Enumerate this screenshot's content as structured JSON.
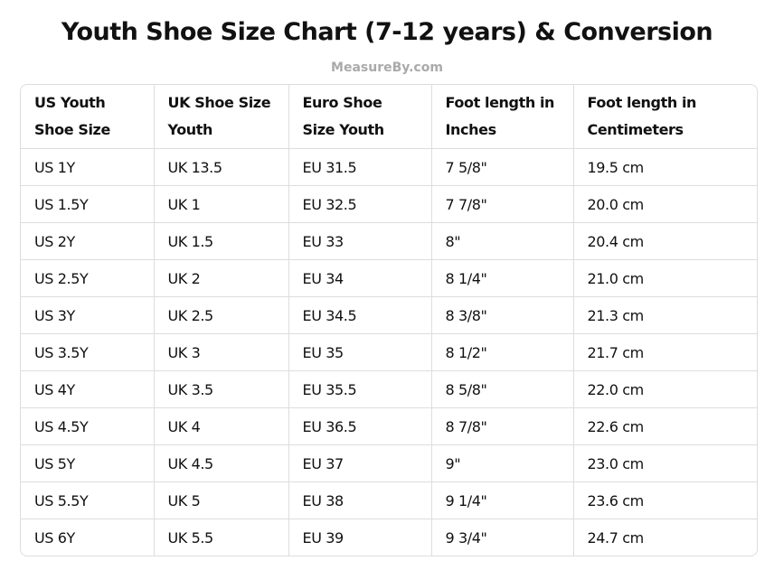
{
  "header": {
    "title": "Youth Shoe Size Chart (7-12 years) & Conversion",
    "source": "MeasureBy.com"
  },
  "table": {
    "columns": [
      "US Youth Shoe Size",
      "UK Shoe Size Youth",
      "Euro Shoe Size Youth",
      "Foot length in Inches",
      "Foot length in Centimeters"
    ],
    "rows": [
      [
        "US 1Y",
        "UK 13.5",
        "EU 31.5",
        "7 5/8\"",
        "19.5 cm"
      ],
      [
        "US 1.5Y",
        "UK 1",
        "EU 32.5",
        "7 7/8\"",
        "20.0 cm"
      ],
      [
        "US 2Y",
        "UK 1.5",
        "EU 33",
        "8\"",
        "20.4 cm"
      ],
      [
        "US 2.5Y",
        "UK 2",
        "EU 34",
        "8 1/4\"",
        "21.0 cm"
      ],
      [
        "US 3Y",
        "UK 2.5",
        "EU 34.5",
        "8 3/8\"",
        "21.3 cm"
      ],
      [
        "US 3.5Y",
        "UK 3",
        "EU 35",
        "8 1/2\"",
        "21.7 cm"
      ],
      [
        "US 4Y",
        "UK 3.5",
        "EU 35.5",
        "8 5/8\"",
        "22.0 cm"
      ],
      [
        "US 4.5Y",
        "UK 4",
        "EU 36.5",
        "8 7/8\"",
        "22.6 cm"
      ],
      [
        "US 5Y",
        "UK 4.5",
        "EU 37",
        "9\"",
        "23.0 cm"
      ],
      [
        "US 5.5Y",
        "UK 5",
        "EU 38",
        "9 1/4\"",
        "23.6 cm"
      ],
      [
        "US 6Y",
        "UK 5.5",
        "EU 39",
        "9 3/4\"",
        "24.7 cm"
      ]
    ]
  }
}
